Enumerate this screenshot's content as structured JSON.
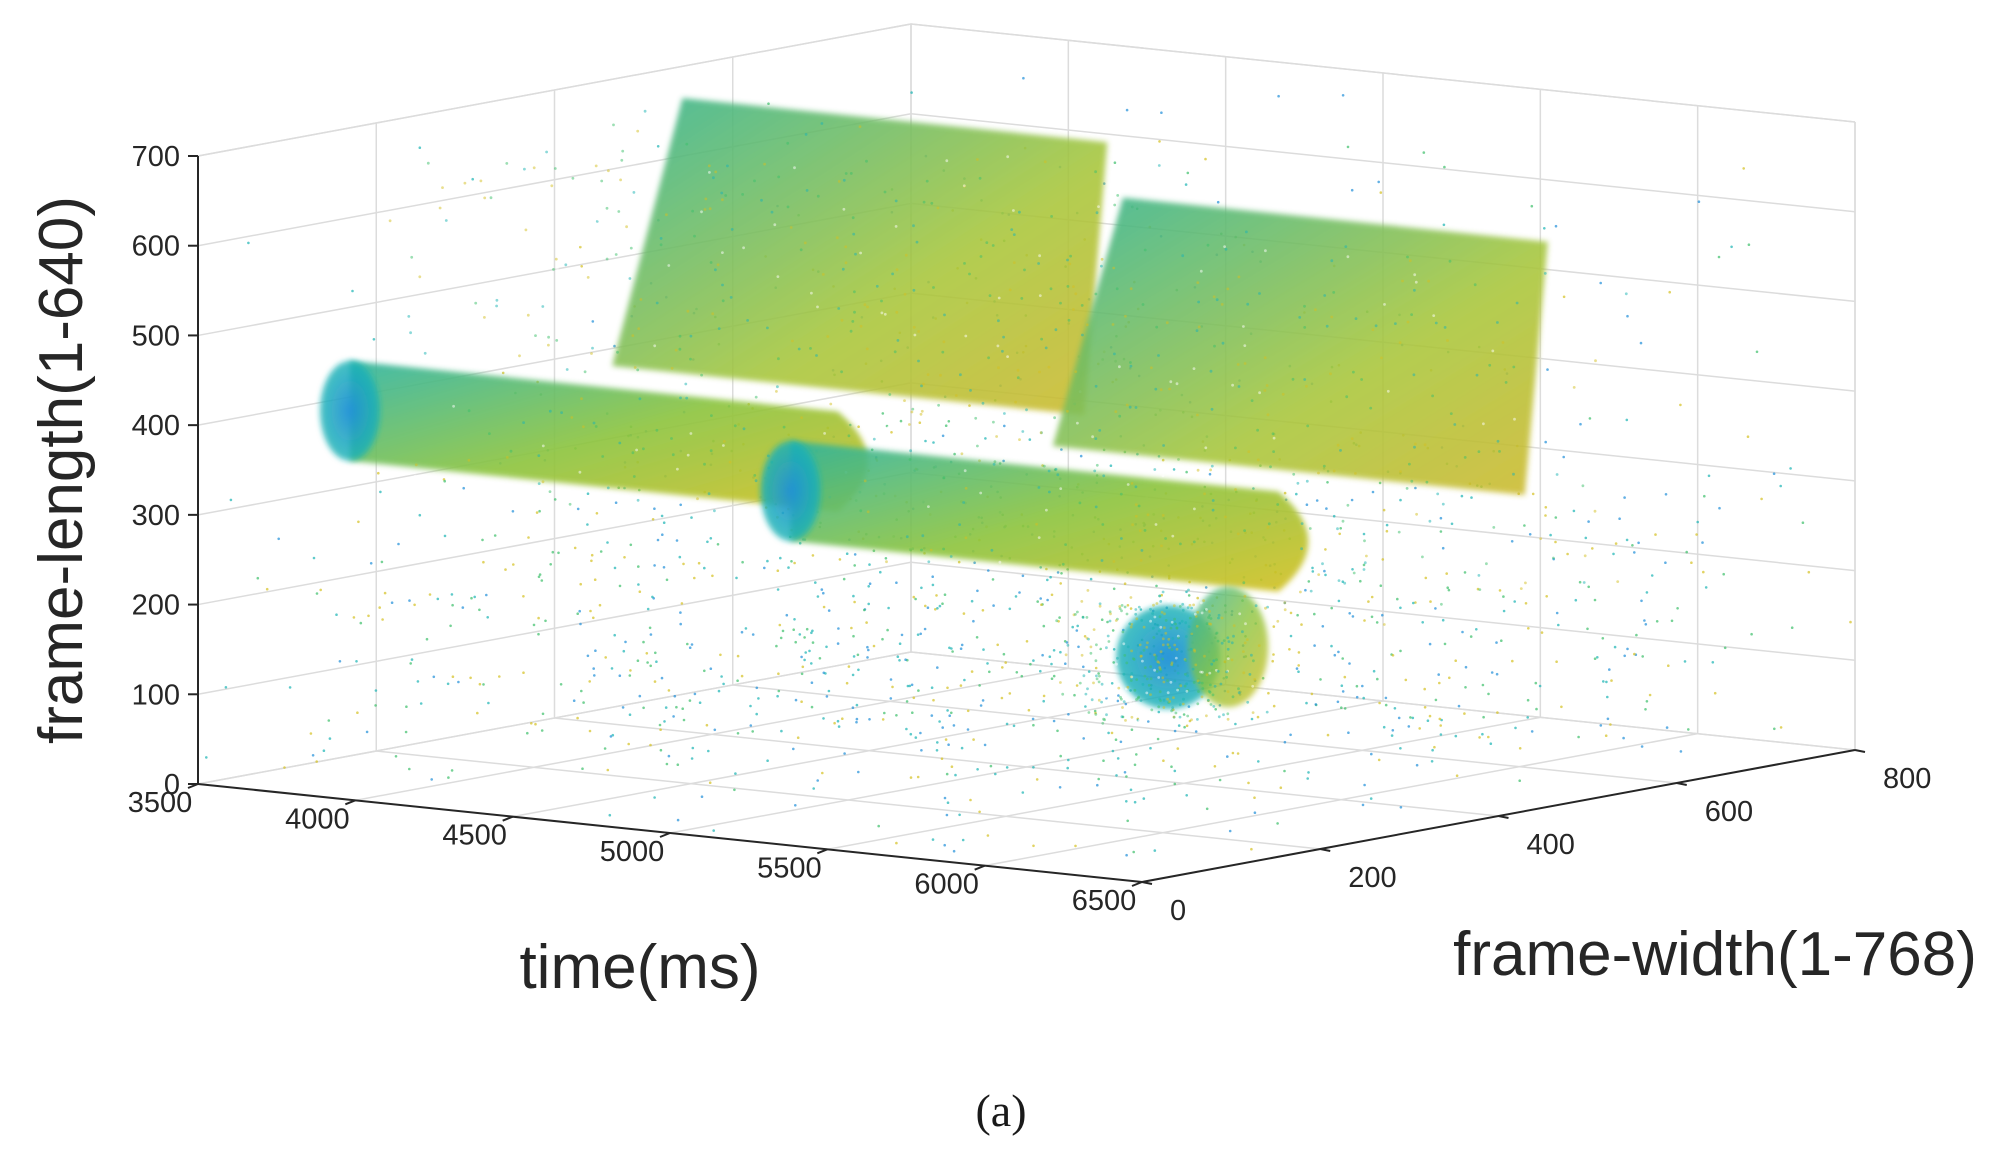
{
  "caption": "(a)",
  "chart_data": {
    "type": "scatter3d",
    "xlabel": "time(ms)",
    "ylabel": "frame-width(1-768)",
    "zlabel": "frame-length(1-640)",
    "xlim": [
      3500,
      6500
    ],
    "ylim": [
      0,
      800
    ],
    "zlim": [
      0,
      700
    ],
    "x_ticks": [
      "3500",
      "4000",
      "4500",
      "5000",
      "5500",
      "6000",
      "6500"
    ],
    "y_ticks": [
      "0",
      "200",
      "400",
      "600",
      "800"
    ],
    "z_ticks": [
      "0",
      "100",
      "200",
      "300",
      "400",
      "500",
      "600",
      "700"
    ],
    "grid": true,
    "colormap": "parula",
    "colors": {
      "axis": "#262626",
      "grid": "#dcdcdc",
      "blue": "#1f8fd8",
      "teal": "#19b3b3",
      "green": "#3cbf6a",
      "yellow": "#d4c021"
    },
    "clusters": [
      {
        "x_range": [
          3700,
          5500
        ],
        "y_range": [
          100,
          420
        ],
        "z_range": [
          290,
          700
        ],
        "colormap_level": 0.55
      },
      {
        "x_range": [
          5100,
          6900
        ],
        "y_range": [
          100,
          420
        ],
        "z_range": [
          260,
          640
        ],
        "colormap_level": 0.6
      },
      {
        "x_range": [
          6100,
          6500
        ],
        "y_range": [
          40,
          160
        ],
        "z_range": [
          160,
          290
        ],
        "colormap_level": 0.4
      }
    ]
  }
}
